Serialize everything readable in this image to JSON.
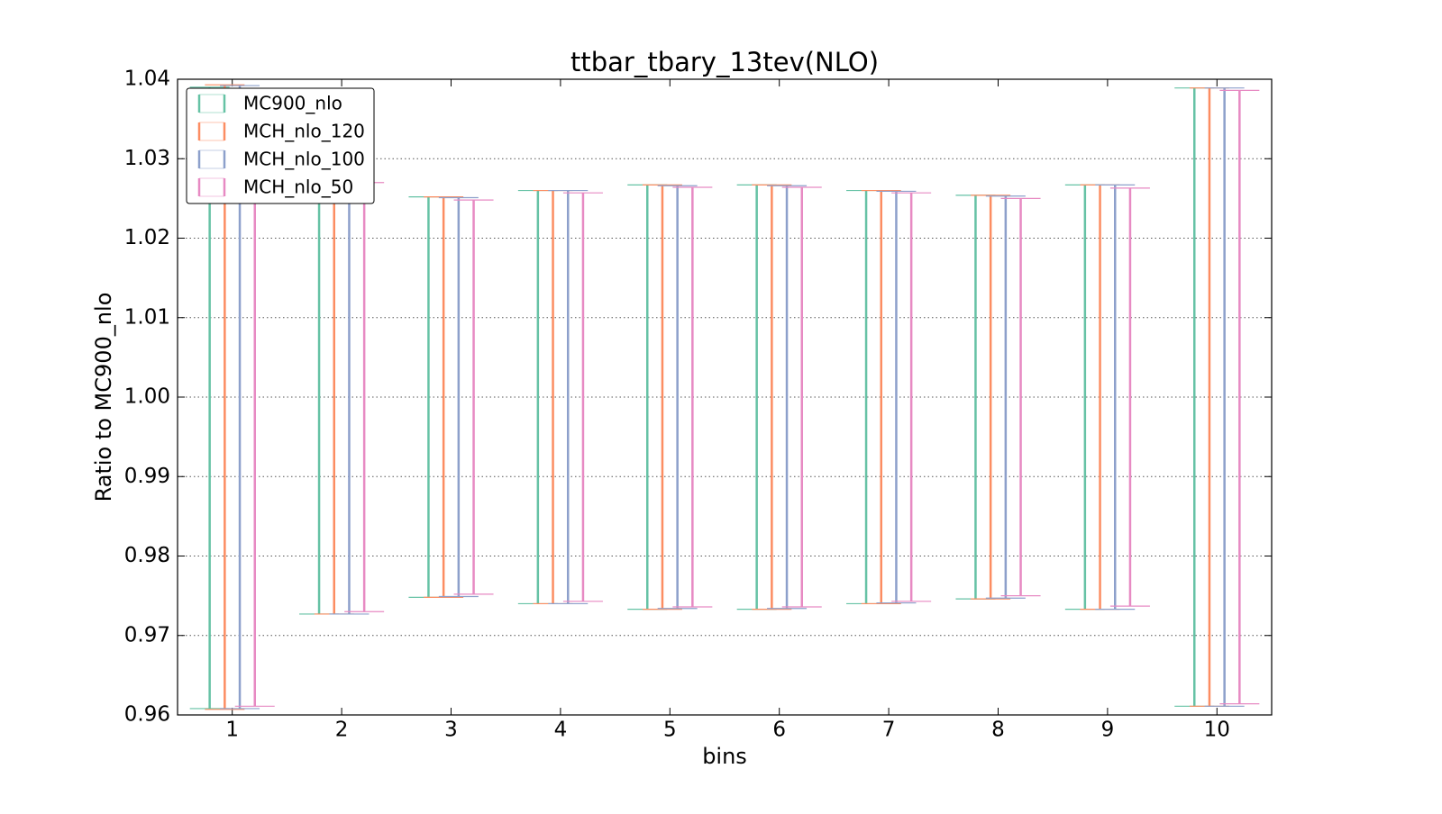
{
  "chart_data": {
    "type": "errorbar",
    "title": "ttbar_tbary_13tev(NLO)",
    "x_label": "bins",
    "y_label": "Ratio to MC900_nlo",
    "x": [
      1,
      2,
      3,
      4,
      5,
      6,
      7,
      8,
      9,
      10
    ],
    "xlim": [
      0.5,
      10.5
    ],
    "xticks": [
      1,
      2,
      3,
      4,
      5,
      6,
      7,
      8,
      9,
      10
    ],
    "ylim": [
      0.96,
      1.04
    ],
    "yticks": [
      0.96,
      0.97,
      0.98,
      0.99,
      {
        "value": 1,
        "label": "1.00"
      },
      1.01,
      1.02,
      1.03,
      1.04
    ],
    "grid": true,
    "legend": "upper left",
    "series": [
      {
        "name": "MC900_nlo",
        "color": "#66c2a5",
        "high": [
          1.039,
          1.0273,
          1.0252,
          1.026,
          1.0267,
          1.0267,
          1.026,
          1.0254,
          1.0267,
          1.0389
        ],
        "low": [
          0.9608,
          0.9727,
          0.9748,
          0.974,
          0.9733,
          0.9733,
          0.974,
          0.9746,
          0.9733,
          0.9611
        ]
      },
      {
        "name": "MCH_nlo_120",
        "color": "#fc8d62",
        "high": [
          1.0393,
          1.0273,
          1.0252,
          1.026,
          1.0267,
          1.0267,
          1.026,
          1.0254,
          1.0267,
          1.0389
        ],
        "low": [
          0.9607,
          0.9727,
          0.9748,
          0.974,
          0.9733,
          0.9733,
          0.974,
          0.9746,
          0.9733,
          0.9611
        ]
      },
      {
        "name": "MCH_nlo_100",
        "color": "#8da0cb",
        "high": [
          1.0392,
          1.0273,
          1.0251,
          1.026,
          1.0266,
          1.0266,
          1.0259,
          1.0253,
          1.0267,
          1.0389
        ],
        "low": [
          0.9608,
          0.9727,
          0.9749,
          0.974,
          0.9734,
          0.9734,
          0.9741,
          0.9747,
          0.9733,
          0.9611
        ]
      },
      {
        "name": "MCH_nlo_50",
        "color": "#e78ac3",
        "high": [
          1.0388,
          1.027,
          1.0248,
          1.0257,
          1.0264,
          1.0264,
          1.0257,
          1.025,
          1.0263,
          1.0386
        ],
        "low": [
          0.9611,
          0.973,
          0.9752,
          0.9743,
          0.9736,
          0.9736,
          0.9743,
          0.975,
          0.9737,
          0.9614
        ]
      }
    ]
  }
}
